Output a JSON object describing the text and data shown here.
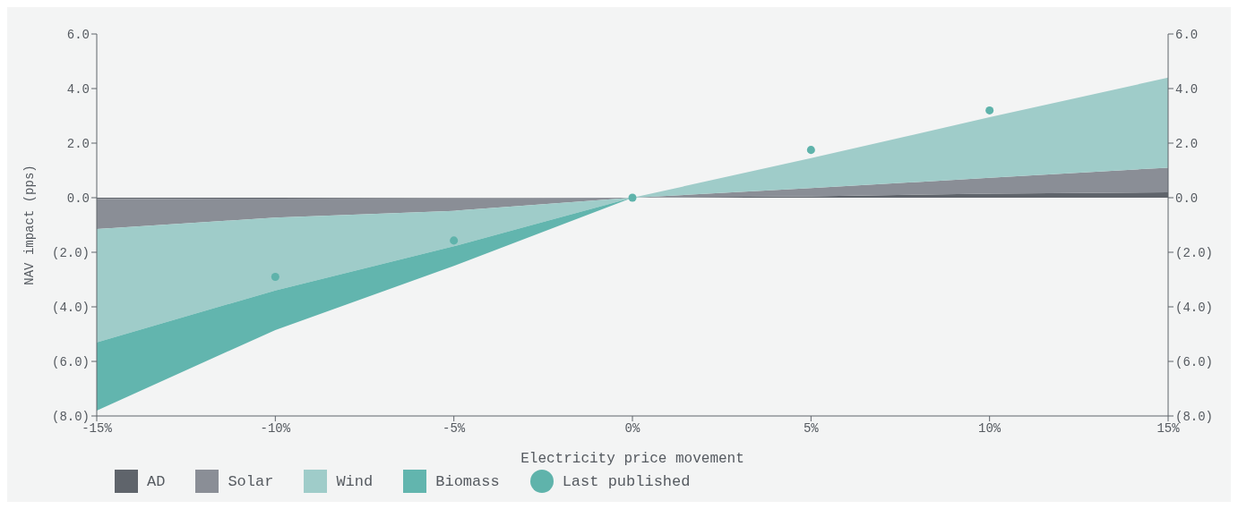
{
  "chart_data": {
    "type": "area",
    "xlabel": "Electricity price movement",
    "ylabel": "NAV impact (pps)",
    "stacked": true,
    "legend": "bottom left",
    "grid": false,
    "x": [
      -15,
      -10,
      -5,
      0,
      5,
      10,
      15
    ],
    "xlim": [
      -15,
      15
    ],
    "xticks": [
      {
        "value": -15,
        "label": "-15%"
      },
      {
        "value": -10,
        "label": "-10%"
      },
      {
        "value": -5,
        "label": "-5%"
      },
      {
        "value": 0,
        "label": "0%"
      },
      {
        "value": 5,
        "label": "5%"
      },
      {
        "value": 10,
        "label": "10%"
      },
      {
        "value": 15,
        "label": "15%"
      }
    ],
    "ylim": [
      -8,
      6
    ],
    "yticks": [
      {
        "value": -8,
        "label": "(8.0)"
      },
      {
        "value": -6,
        "label": "(6.0)"
      },
      {
        "value": -4,
        "label": "(4.0)"
      },
      {
        "value": -2,
        "label": "(2.0)"
      },
      {
        "value": 0,
        "label": "0.0"
      },
      {
        "value": 2,
        "label": "2.0"
      },
      {
        "value": 4,
        "label": "4.0"
      },
      {
        "value": 6,
        "label": "6.0"
      }
    ],
    "y2lim": [
      -8,
      6
    ],
    "y2ticks": [
      {
        "value": -8,
        "label": "(8.0)"
      },
      {
        "value": -6,
        "label": "(6.0)"
      },
      {
        "value": -4,
        "label": "(4.0)"
      },
      {
        "value": -2,
        "label": "(2.0)"
      },
      {
        "value": 0,
        "label": "0.0"
      },
      {
        "value": 2,
        "label": "2.0"
      },
      {
        "value": 4,
        "label": "4.0"
      },
      {
        "value": 6,
        "label": "6.0"
      }
    ],
    "series": [
      {
        "name": "AD",
        "color": "#5f646b",
        "values": [
          -0.05,
          -0.03,
          -0.02,
          0,
          0.05,
          0.15,
          0.2
        ]
      },
      {
        "name": "Solar",
        "color": "#8a8e96",
        "values": [
          -1.1,
          -0.7,
          -0.46,
          0,
          0.3,
          0.58,
          0.9
        ]
      },
      {
        "name": "Wind",
        "color": "#9fccc9",
        "values": [
          -4.15,
          -2.67,
          -1.3,
          0,
          1.1,
          2.22,
          3.3
        ]
      },
      {
        "name": "Biomass",
        "color": "#62b5ae",
        "values": [
          -2.5,
          -1.45,
          -0.72,
          0,
          0,
          0,
          0
        ]
      },
      {
        "name": "Last published",
        "type": "scatter",
        "color": "#5fb3ab",
        "marker": "circle",
        "x": [
          -10,
          -5,
          0,
          5,
          10
        ],
        "values": [
          -2.9,
          -1.57,
          0,
          1.75,
          3.2
        ]
      }
    ]
  }
}
